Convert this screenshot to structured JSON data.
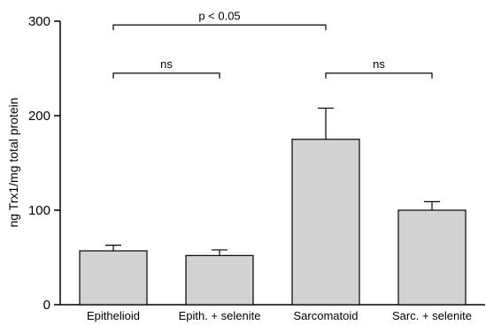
{
  "chart_data": {
    "type": "bar",
    "categories": [
      "Epithelioid",
      "Epith. + selenite",
      "Sarcomatoid",
      "Sarc. + selenite"
    ],
    "values": [
      57,
      52,
      175,
      100
    ],
    "errors": [
      6,
      6,
      33,
      9
    ],
    "ylabel": "ng Trx1/mg total protein",
    "xlabel": "",
    "ylim": [
      0,
      300
    ],
    "yticks": [
      0,
      100,
      200,
      300
    ],
    "bar_color": "#d3d3d3",
    "grid": false,
    "comparisons": [
      {
        "from": 0,
        "to": 2,
        "label": "p < 0.05",
        "level": 1
      },
      {
        "from": 0,
        "to": 1,
        "label": "ns",
        "level": 0
      },
      {
        "from": 2,
        "to": 3,
        "label": "ns",
        "level": 0
      }
    ]
  }
}
